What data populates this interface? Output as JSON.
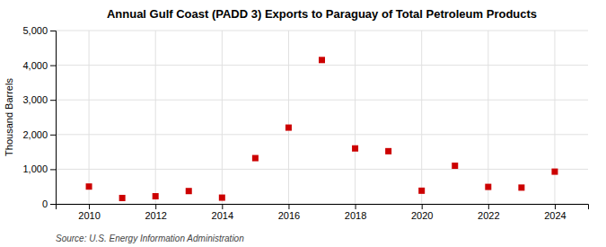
{
  "chart_data": {
    "type": "scatter",
    "title": "Annual Gulf Coast (PADD 3) Exports to Paraguay of Total Petroleum Products",
    "ylabel": "Thousand Barrels",
    "source": "Source: U.S. Energy Information Administration",
    "x": [
      2010,
      2011,
      2012,
      2013,
      2014,
      2015,
      2016,
      2017,
      2018,
      2019,
      2020,
      2021,
      2022,
      2023,
      2024
    ],
    "values": [
      500,
      170,
      220,
      370,
      180,
      1320,
      2200,
      4150,
      1600,
      1520,
      380,
      1100,
      490,
      470,
      930
    ],
    "color": "#cc0000",
    "marker": "square",
    "xlim": [
      2009,
      2025
    ],
    "xticks": [
      2010,
      2012,
      2014,
      2016,
      2018,
      2020,
      2022,
      2024
    ],
    "ylim": [
      0,
      5000
    ],
    "yticks": [
      0,
      {
        "value": 1000,
        "label": "1,000"
      },
      {
        "value": 2000,
        "label": "2,000"
      },
      {
        "value": 3000,
        "label": "3,000"
      },
      {
        "value": 4000,
        "label": "4,000"
      },
      {
        "value": 5000,
        "label": "5,000"
      }
    ],
    "grid": true
  }
}
